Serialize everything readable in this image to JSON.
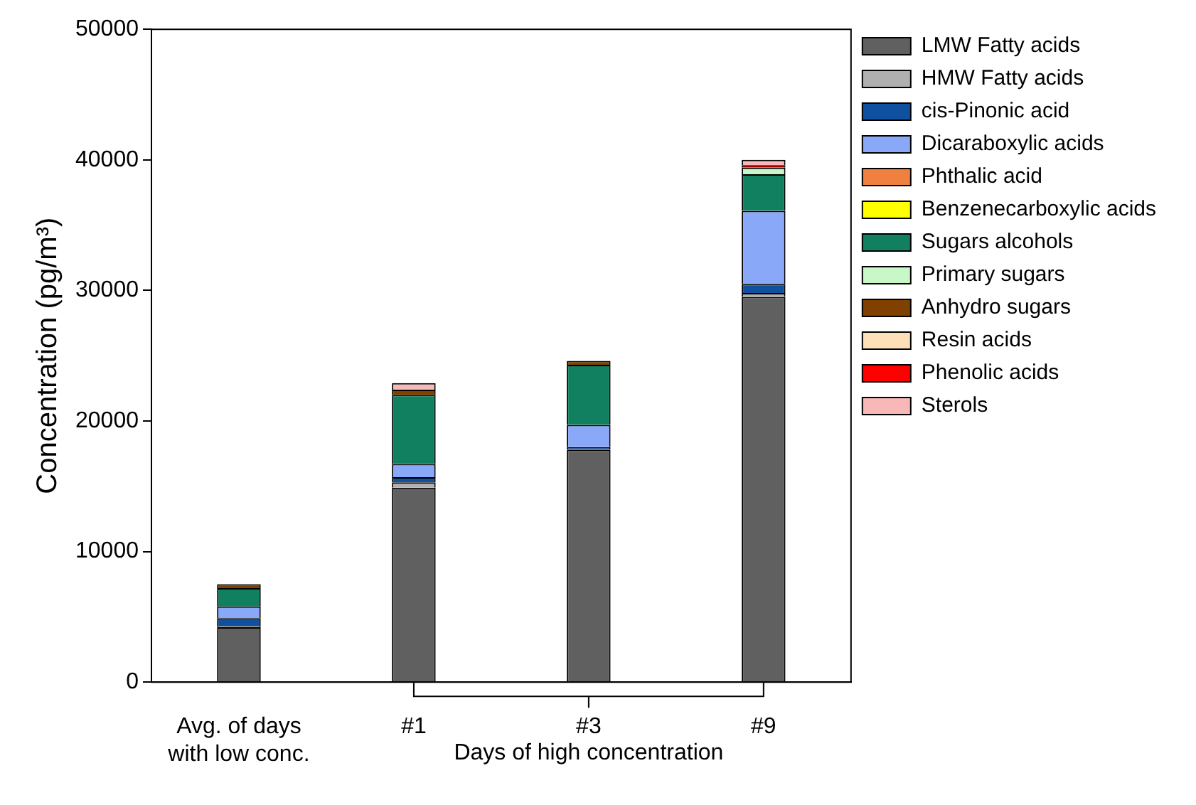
{
  "chart_data": {
    "type": "bar",
    "stacked": true,
    "ylabel": "Concentration (pg/m³)",
    "categories": [
      "Avg. of days with low conc.",
      "#1",
      "#3",
      "#9"
    ],
    "ylim": [
      0,
      50000
    ],
    "yticks": [
      0,
      10000,
      20000,
      30000,
      40000,
      50000
    ],
    "grid": false,
    "legend": "right",
    "annotations": [
      "Days of high concentration"
    ],
    "series": [
      {
        "name": "LMW Fatty acids",
        "color": "#606060",
        "values": [
          4200,
          14900,
          17800,
          29500
        ]
      },
      {
        "name": "HMW Fatty acids",
        "color": "#b0b0b0",
        "values": [
          100,
          400,
          0,
          300
        ]
      },
      {
        "name": "cis-Pinonic acid",
        "color": "#1050a0",
        "values": [
          600,
          400,
          200,
          700
        ]
      },
      {
        "name": "Dicaraboxylic acids",
        "color": "#8aa8f8",
        "values": [
          900,
          1000,
          1700,
          5600
        ]
      },
      {
        "name": "Phthalic acid",
        "color": "#f08040",
        "values": [
          0,
          0,
          0,
          0
        ]
      },
      {
        "name": "Benzenecarboxylic acids",
        "color": "#ffff00",
        "values": [
          0,
          0,
          0,
          0
        ]
      },
      {
        "name": "Sugars alcohols",
        "color": "#108060",
        "values": [
          1400,
          5300,
          4600,
          2800
        ]
      },
      {
        "name": "Primary sugars",
        "color": "#c8f8c8",
        "values": [
          0,
          0,
          0,
          500
        ]
      },
      {
        "name": "Anhydro sugars",
        "color": "#804000",
        "values": [
          300,
          400,
          300,
          0
        ]
      },
      {
        "name": "Resin acids",
        "color": "#fde0b8",
        "values": [
          0,
          0,
          0,
          0
        ]
      },
      {
        "name": "Phenolic acids",
        "color": "#ff0000",
        "values": [
          0,
          0,
          0,
          200
        ]
      },
      {
        "name": "Sterols",
        "color": "#f8b8b8",
        "values": [
          0,
          500,
          0,
          400
        ]
      }
    ]
  }
}
